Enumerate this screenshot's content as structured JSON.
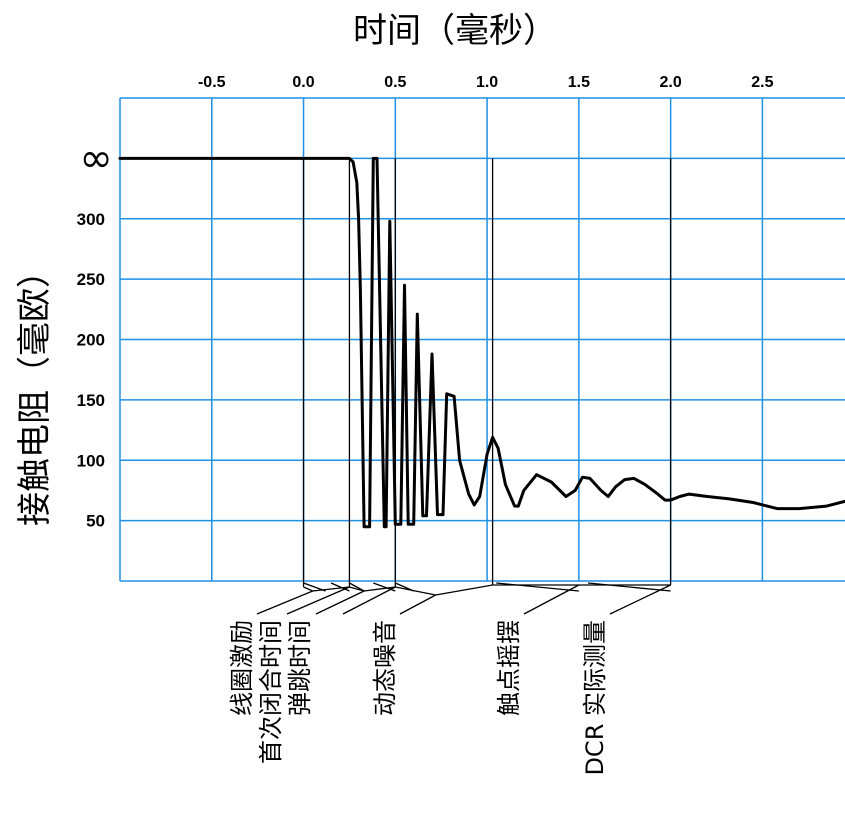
{
  "chart_data": {
    "type": "line",
    "title": "时间（毫秒）",
    "xlabel": "时间（毫秒）",
    "ylabel": "接触电阻（毫欧）",
    "xlim": [
      -1.0,
      2.95
    ],
    "ylim": [
      0,
      400
    ],
    "x_ticks": [
      "-0.5",
      "0.0",
      "0.5",
      "1.0",
      "1.5",
      "2.0",
      "2.5"
    ],
    "x_tick_values": [
      -0.5,
      0.0,
      0.5,
      1.0,
      1.5,
      2.0,
      2.5
    ],
    "y_ticks": [
      "50",
      "100",
      "150",
      "200",
      "250",
      "300"
    ],
    "y_tick_values": [
      50,
      100,
      150,
      200,
      250,
      300
    ],
    "infinity_label": "∞",
    "infinity_value": 350,
    "grid": true,
    "grid_color": "#1e90e6",
    "line_color": "#000000",
    "series": [
      {
        "x": [
          -1.0,
          0.25,
          0.27,
          0.29,
          0.3,
          0.31,
          0.33,
          0.36,
          0.38,
          0.4,
          0.44,
          0.45,
          0.47,
          0.5,
          0.53,
          0.55,
          0.57,
          0.6,
          0.62,
          0.65,
          0.67,
          0.7,
          0.73,
          0.76,
          0.78,
          0.82,
          0.85,
          0.9,
          0.93,
          0.96,
          1.0,
          1.03,
          1.06,
          1.1,
          1.15,
          1.17,
          1.2,
          1.27,
          1.35,
          1.43,
          1.48,
          1.52,
          1.56,
          1.62,
          1.66,
          1.7,
          1.75,
          1.8,
          1.86,
          1.93,
          1.97,
          2.0,
          2.05,
          2.1,
          2.2,
          2.32,
          2.45,
          2.58,
          2.7,
          2.85,
          2.95
        ],
        "y": [
          350,
          350,
          347,
          330,
          300,
          240,
          45,
          45,
          350,
          350,
          45,
          45,
          298,
          47,
          47,
          245,
          47,
          47,
          221,
          54,
          54,
          188,
          55,
          55,
          155,
          153,
          100,
          72,
          63,
          70,
          105,
          119,
          110,
          80,
          62,
          62,
          75,
          88,
          82,
          70,
          75,
          86,
          85,
          75,
          70,
          78,
          84,
          85,
          80,
          72,
          67,
          67,
          70,
          72,
          70,
          68,
          65,
          60,
          60,
          62,
          66
        ]
      }
    ],
    "annotations": [
      "线圈激励",
      "首次闭合时间",
      "弹跳时间",
      "动态噪音",
      "触点摇摆",
      "DCR 实际测量"
    ]
  }
}
